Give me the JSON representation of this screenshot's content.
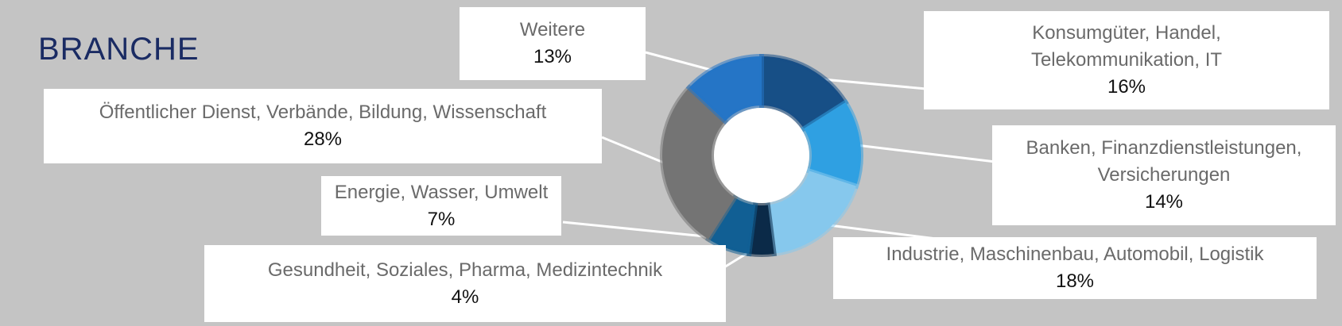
{
  "title": "BRANCHE",
  "chart_data": {
    "type": "pie",
    "variant": "donut",
    "title": "BRANCHE",
    "slices": [
      {
        "label": "Konsumgüter, Handel, Telekommunikation, IT",
        "lines": [
          "Konsumgüter, Handel,",
          "Telekommunikation, IT"
        ],
        "value": 16,
        "value_label": "16%",
        "color": "#174f86"
      },
      {
        "label": "Banken, Finanzdienstleistungen, Versicherungen",
        "lines": [
          "Banken, Finanzdienstleistungen,",
          "Versicherungen"
        ],
        "value": 14,
        "value_label": "14%",
        "color": "#2fa0e2"
      },
      {
        "label": "Industrie, Maschinenbau, Automobil, Logistik",
        "lines": [
          "Industrie, Maschinenbau, Automobil, Logistik"
        ],
        "value": 18,
        "value_label": "18%",
        "color": "#86c8ed"
      },
      {
        "label": "Gesundheit, Soziales, Pharma, Medizintechnik",
        "lines": [
          "Gesundheit, Soziales, Pharma, Medizintechnik"
        ],
        "value": 4,
        "value_label": "4%",
        "color": "#0b2a48"
      },
      {
        "label": "Energie, Wasser, Umwelt",
        "lines": [
          "Energie, Wasser, Umwelt"
        ],
        "value": 7,
        "value_label": "7%",
        "color": "#115f94"
      },
      {
        "label": "Öffentlicher Dienst, Verbände, Bildung, Wissenschaft",
        "lines": [
          "Öffentlicher Dienst, Verbände, Bildung, Wissenschaft"
        ],
        "value": 28,
        "value_label": "28%",
        "color": "#747474"
      },
      {
        "label": "Weitere",
        "lines": [
          "Weitere"
        ],
        "value": 13,
        "value_label": "13%",
        "color": "#2575c6"
      }
    ]
  }
}
